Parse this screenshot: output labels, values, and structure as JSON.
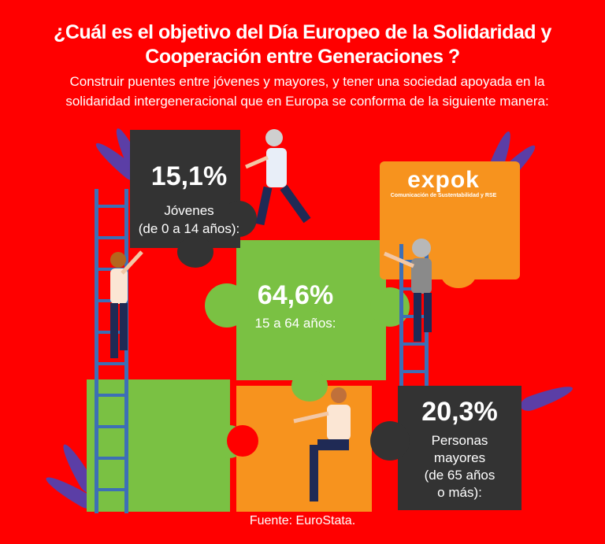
{
  "header": {
    "title_line1": "¿Cuál es el objetivo del Día Europeo de la Solidaridad y",
    "title_line2": "Cooperación entre Generaciones ?",
    "subtitle_line1": "Construir puentes entre jóvenes y mayores, y tener una sociedad apoyada en la",
    "subtitle_line2": "solidaridad intergeneracional que en Europa se conforma de la siguiente manera:"
  },
  "logo": {
    "name": "expok",
    "tagline": "Comunicación de Sustentabilidad y RSE"
  },
  "stats": {
    "young": {
      "percent": "15,1%",
      "label1": "Jóvenes",
      "label2": "(de 0 a 14 años):"
    },
    "adult": {
      "percent": "64,6%",
      "label1": "15 a 64 años:"
    },
    "elderly": {
      "percent": "20,3%",
      "label1": "Personas",
      "label2": "mayores",
      "label3": "(de 65 años",
      "label4": "o más):"
    }
  },
  "footer": {
    "source": "Fuente: EuroStata."
  },
  "colors": {
    "background": "#ff0000",
    "dark": "#333333",
    "green": "#7ac143",
    "orange": "#f7931e",
    "ladder": "#3d6fb6",
    "leaf": "#5b3ea6"
  }
}
